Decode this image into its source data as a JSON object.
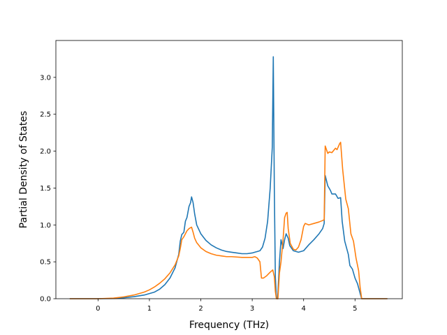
{
  "chart_data": {
    "type": "line",
    "title": "",
    "xlabel": "Frequency (THz)",
    "ylabel": "Partial Density of States",
    "xlim": [
      -0.82,
      5.92
    ],
    "ylim": [
      0.0,
      3.5
    ],
    "xticks": [
      0,
      1,
      2,
      3,
      4,
      5
    ],
    "yticks": [
      0.0,
      0.5,
      1.0,
      1.5,
      2.0,
      2.5,
      3.0
    ],
    "xtick_labels": [
      "0",
      "1",
      "2",
      "3",
      "4",
      "5"
    ],
    "ytick_labels": [
      "0.0",
      "0.5",
      "1.0",
      "1.5",
      "2.0",
      "2.5",
      "3.0"
    ],
    "grid": false,
    "legend": null,
    "series": [
      {
        "color": "#1f77b4",
        "points": [
          [
            -0.55,
            0.0
          ],
          [
            0.0,
            0.0
          ],
          [
            0.3,
            0.003
          ],
          [
            0.5,
            0.012
          ],
          [
            0.7,
            0.028
          ],
          [
            0.9,
            0.05
          ],
          [
            1.0,
            0.07
          ],
          [
            1.1,
            0.09
          ],
          [
            1.2,
            0.13
          ],
          [
            1.3,
            0.19
          ],
          [
            1.4,
            0.28
          ],
          [
            1.5,
            0.42
          ],
          [
            1.57,
            0.6
          ],
          [
            1.6,
            0.78
          ],
          [
            1.63,
            0.87
          ],
          [
            1.67,
            0.9
          ],
          [
            1.7,
            1.05
          ],
          [
            1.73,
            1.1
          ],
          [
            1.77,
            1.25
          ],
          [
            1.8,
            1.3
          ],
          [
            1.82,
            1.38
          ],
          [
            1.85,
            1.3
          ],
          [
            1.88,
            1.15
          ],
          [
            1.92,
            1.0
          ],
          [
            2.0,
            0.88
          ],
          [
            2.1,
            0.79
          ],
          [
            2.2,
            0.73
          ],
          [
            2.3,
            0.69
          ],
          [
            2.4,
            0.66
          ],
          [
            2.5,
            0.64
          ],
          [
            2.6,
            0.63
          ],
          [
            2.7,
            0.62
          ],
          [
            2.8,
            0.61
          ],
          [
            2.9,
            0.61
          ],
          [
            3.0,
            0.62
          ],
          [
            3.05,
            0.63
          ],
          [
            3.1,
            0.64
          ],
          [
            3.15,
            0.65
          ],
          [
            3.2,
            0.7
          ],
          [
            3.25,
            0.82
          ],
          [
            3.3,
            1.05
          ],
          [
            3.35,
            1.5
          ],
          [
            3.39,
            2.05
          ],
          [
            3.41,
            3.28
          ],
          [
            3.43,
            1.5
          ],
          [
            3.45,
            0.3
          ],
          [
            3.47,
            0.02
          ],
          [
            3.49,
            0.0
          ],
          [
            3.5,
            0.08
          ],
          [
            3.53,
            0.5
          ],
          [
            3.56,
            0.8
          ],
          [
            3.6,
            0.68
          ],
          [
            3.63,
            0.8
          ],
          [
            3.66,
            0.88
          ],
          [
            3.7,
            0.82
          ],
          [
            3.73,
            0.72
          ],
          [
            3.8,
            0.65
          ],
          [
            3.9,
            0.63
          ],
          [
            4.0,
            0.65
          ],
          [
            4.1,
            0.73
          ],
          [
            4.2,
            0.8
          ],
          [
            4.3,
            0.88
          ],
          [
            4.37,
            0.95
          ],
          [
            4.4,
            1.02
          ],
          [
            4.42,
            1.67
          ],
          [
            4.47,
            1.53
          ],
          [
            4.52,
            1.47
          ],
          [
            4.55,
            1.42
          ],
          [
            4.62,
            1.42
          ],
          [
            4.67,
            1.36
          ],
          [
            4.72,
            1.37
          ],
          [
            4.75,
            1.05
          ],
          [
            4.8,
            0.78
          ],
          [
            4.87,
            0.6
          ],
          [
            4.9,
            0.45
          ],
          [
            4.95,
            0.4
          ],
          [
            5.0,
            0.28
          ],
          [
            5.05,
            0.2
          ],
          [
            5.1,
            0.07
          ],
          [
            5.13,
            0.0
          ],
          [
            5.5,
            0.0
          ],
          [
            5.63,
            0.0
          ]
        ]
      },
      {
        "color": "#ff7f0e",
        "points": [
          [
            -0.55,
            0.0
          ],
          [
            0.0,
            0.0
          ],
          [
            0.3,
            0.008
          ],
          [
            0.5,
            0.025
          ],
          [
            0.7,
            0.05
          ],
          [
            0.9,
            0.09
          ],
          [
            1.0,
            0.12
          ],
          [
            1.1,
            0.16
          ],
          [
            1.2,
            0.21
          ],
          [
            1.3,
            0.27
          ],
          [
            1.4,
            0.35
          ],
          [
            1.5,
            0.46
          ],
          [
            1.57,
            0.58
          ],
          [
            1.6,
            0.68
          ],
          [
            1.63,
            0.8
          ],
          [
            1.67,
            0.84
          ],
          [
            1.7,
            0.88
          ],
          [
            1.73,
            0.92
          ],
          [
            1.77,
            0.95
          ],
          [
            1.82,
            0.97
          ],
          [
            1.85,
            0.9
          ],
          [
            1.88,
            0.82
          ],
          [
            1.92,
            0.76
          ],
          [
            2.0,
            0.69
          ],
          [
            2.1,
            0.64
          ],
          [
            2.2,
            0.61
          ],
          [
            2.3,
            0.59
          ],
          [
            2.4,
            0.58
          ],
          [
            2.5,
            0.57
          ],
          [
            2.6,
            0.57
          ],
          [
            2.8,
            0.56
          ],
          [
            3.0,
            0.56
          ],
          [
            3.05,
            0.57
          ],
          [
            3.1,
            0.55
          ],
          [
            3.15,
            0.5
          ],
          [
            3.18,
            0.28
          ],
          [
            3.22,
            0.28
          ],
          [
            3.28,
            0.31
          ],
          [
            3.35,
            0.36
          ],
          [
            3.4,
            0.39
          ],
          [
            3.43,
            0.3
          ],
          [
            3.45,
            0.1
          ],
          [
            3.47,
            0.0
          ],
          [
            3.5,
            0.0
          ],
          [
            3.53,
            0.35
          ],
          [
            3.56,
            0.5
          ],
          [
            3.6,
            0.8
          ],
          [
            3.63,
            1.1
          ],
          [
            3.66,
            1.16
          ],
          [
            3.68,
            1.17
          ],
          [
            3.7,
            0.95
          ],
          [
            3.74,
            0.75
          ],
          [
            3.8,
            0.67
          ],
          [
            3.85,
            0.66
          ],
          [
            3.9,
            0.7
          ],
          [
            3.95,
            0.8
          ],
          [
            4.0,
            0.98
          ],
          [
            4.03,
            1.02
          ],
          [
            4.1,
            1.0
          ],
          [
            4.2,
            1.02
          ],
          [
            4.3,
            1.04
          ],
          [
            4.37,
            1.06
          ],
          [
            4.4,
            1.07
          ],
          [
            4.42,
            2.07
          ],
          [
            4.47,
            1.97
          ],
          [
            4.5,
            1.99
          ],
          [
            4.55,
            1.98
          ],
          [
            4.62,
            2.04
          ],
          [
            4.65,
            2.02
          ],
          [
            4.7,
            2.1
          ],
          [
            4.72,
            2.12
          ],
          [
            4.76,
            1.75
          ],
          [
            4.82,
            1.35
          ],
          [
            4.87,
            1.22
          ],
          [
            4.92,
            0.88
          ],
          [
            4.97,
            0.78
          ],
          [
            5.02,
            0.55
          ],
          [
            5.07,
            0.38
          ],
          [
            5.1,
            0.15
          ],
          [
            5.13,
            0.0
          ],
          [
            5.5,
            0.0
          ],
          [
            5.63,
            0.0
          ]
        ]
      }
    ]
  }
}
